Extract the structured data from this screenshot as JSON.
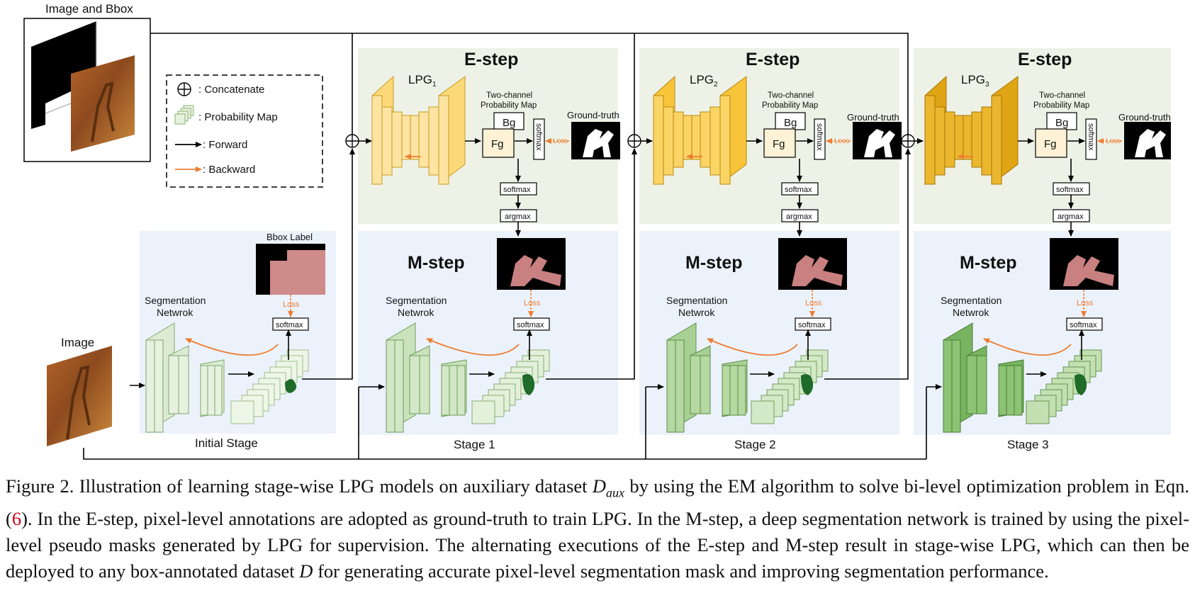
{
  "figure": {
    "image_and_bbox_label": "Image and Bbox",
    "legend": {
      "concatenate": ": Concatenate",
      "probability_map": ": Probability Map",
      "forward": ": Forward",
      "backward": ": Backward"
    },
    "image_label": "Image",
    "bbox_label": "Bbox Label",
    "seg_network_line1": "Segmentation",
    "seg_network_line2": "Netwrok",
    "e_step": "E-step",
    "m_step": "M-step",
    "lpg": "LPG",
    "two_channel_line1": "Two-channel",
    "two_channel_line2": "Probability Map",
    "bg": "Bg",
    "fg": "Fg",
    "softmax": "softmax",
    "argmax": "argmax",
    "loss": "Loss",
    "ground_truth": "Ground-truth",
    "stages": [
      {
        "label": "Initial Stage"
      },
      {
        "label": "Stage 1",
        "lpg_index": "1"
      },
      {
        "label": "Stage 2",
        "lpg_index": "2"
      },
      {
        "label": "Stage 3",
        "lpg_index": "3"
      }
    ],
    "colors": {
      "e_step_bg": "#eef2e6",
      "m_step_bg": "#ecf2fb",
      "forward_arrow": "#000000",
      "backward_arrow": "#ed7d31",
      "bbox_mask": "#cf8a8a",
      "lpg_stage1": "#fbd36a",
      "lpg_stage2": "#f7bf1a",
      "lpg_stage3": "#e0a312",
      "seg_light": "#e3eedc",
      "seg_mid": "#bcd9ae",
      "seg_dark": "#82b86a"
    }
  },
  "caption": {
    "prefix": "Figure 2. Illustration of learning stage-wise LPG models on auxiliary dataset ",
    "dataset_symbol": "D",
    "dataset_subscript": "aux",
    "part2": " by using the EM algorithm to solve bi-level optimization problem in Eqn. (",
    "eqn_ref": "6",
    "part3": "). In the E-step, pixel-level annotations are adopted as ground-truth to train LPG. In the M-step, a deep segmentation network is trained by using the pixel-level pseudo masks generated by LPG for supervision.  The alternating executions of the E-step and M-step result in stage-wise LPG, which can then be deployed to any box-annotated dataset ",
    "dataset_symbol2": "D",
    "part4": " for generating accurate pixel-level segmentation mask and improving segmentation performance."
  }
}
